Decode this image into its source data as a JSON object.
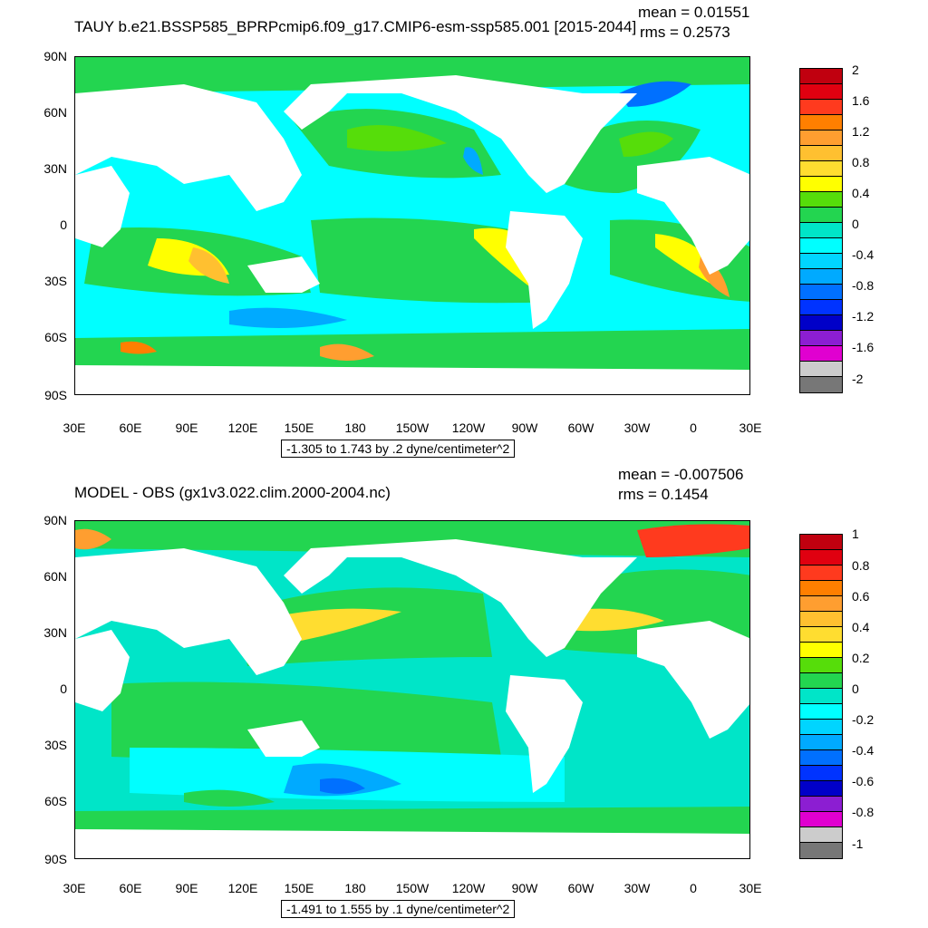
{
  "top": {
    "title": "TAUY b.e21.BSSP585_BPRPcmip6.f09_g17.CMIP6-esm-ssp585.001 [2015-2044]",
    "mean_text": "mean = 0.01551",
    "rms_text": "rms = 0.2573",
    "info_text": "-1.305 to 1.743 by .2 dyne/centimeter^2",
    "y_ticks": [
      "90N",
      "60N",
      "30N",
      "0",
      "30S",
      "60S",
      "90S"
    ],
    "x_ticks": [
      "30E",
      "60E",
      "90E",
      "120E",
      "150E",
      "180",
      "150W",
      "120W",
      "90W",
      "60W",
      "30W",
      "0",
      "30E"
    ],
    "colorbar_labels": [
      "2",
      "1.6",
      "1.2",
      "0.8",
      "0.4",
      "0",
      "-0.4",
      "-0.8",
      "-1.2",
      "-1.6",
      "-2"
    ],
    "colors": [
      "#c0000f",
      "#e00010",
      "#ff3a1e",
      "#ff7f00",
      "#ff9e30",
      "#ffc030",
      "#ffdd30",
      "#ffff00",
      "#56dd0a",
      "#23d550",
      "#00e5c8",
      "#00ffff",
      "#00d5ff",
      "#00aaff",
      "#0070ff",
      "#0033ff",
      "#0000c8",
      "#8c1ed2",
      "#e000d0",
      "#cccccc",
      "#777777"
    ]
  },
  "bottom": {
    "title": "MODEL - OBS (gx1v3.022.clim.2000-2004.nc)",
    "mean_text": "mean = -0.007506",
    "rms_text": "rms = 0.1454",
    "info_text": "-1.491 to 1.555 by .1 dyne/centimeter^2",
    "y_ticks": [
      "90N",
      "60N",
      "30N",
      "0",
      "30S",
      "60S",
      "90S"
    ],
    "x_ticks": [
      "30E",
      "60E",
      "90E",
      "120E",
      "150E",
      "180",
      "150W",
      "120W",
      "90W",
      "60W",
      "30W",
      "0",
      "30E"
    ],
    "colorbar_labels": [
      "1",
      "0.8",
      "0.6",
      "0.4",
      "0.2",
      "0",
      "-0.2",
      "-0.4",
      "-0.6",
      "-0.8",
      "-1"
    ],
    "colors": [
      "#c0000f",
      "#e00010",
      "#ff3a1e",
      "#ff7f00",
      "#ff9e30",
      "#ffc030",
      "#ffdd30",
      "#ffff00",
      "#56dd0a",
      "#23d550",
      "#00e5c8",
      "#00ffff",
      "#00d5ff",
      "#00aaff",
      "#0070ff",
      "#0033ff",
      "#0000c8",
      "#8c1ed2",
      "#e000d0",
      "#cccccc",
      "#777777"
    ]
  }
}
